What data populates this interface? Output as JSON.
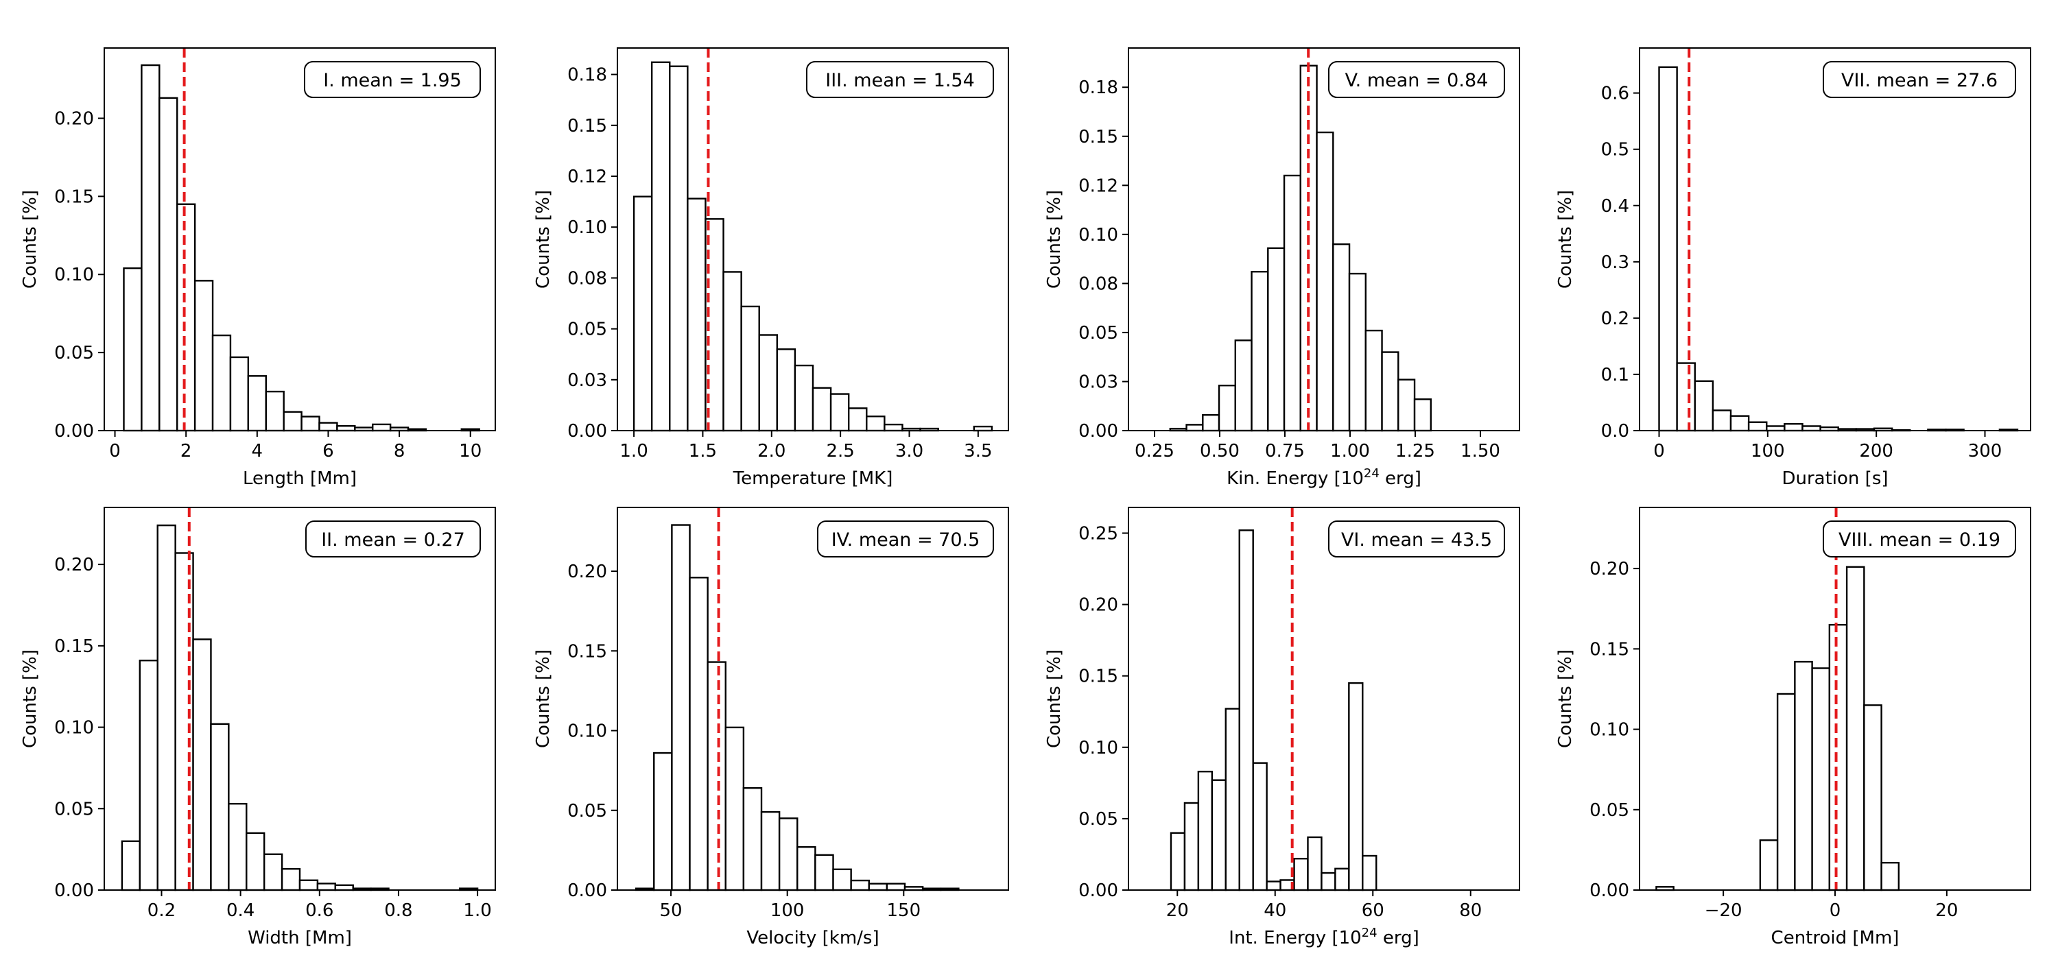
{
  "chart_data": [
    {
      "id": "I",
      "type": "bar",
      "xlabel": "Length [Mm]",
      "ylabel": "Counts [%]",
      "xlim": [
        -0.3,
        10.7
      ],
      "ylim": [
        0,
        0.245
      ],
      "xticks": [
        0,
        2,
        4,
        6,
        8,
        10
      ],
      "xtick_labels": [
        "0",
        "2",
        "4",
        "6",
        "8",
        "10"
      ],
      "yticks": [
        0,
        0.05,
        0.1,
        0.15,
        0.2
      ],
      "ytick_labels": [
        "0.00",
        "0.05",
        "0.10",
        "0.15",
        "0.20"
      ],
      "bin_start": 0.25,
      "bin_width": 0.5,
      "values": [
        0.104,
        0.234,
        0.213,
        0.145,
        0.096,
        0.061,
        0.047,
        0.035,
        0.025,
        0.012,
        0.009,
        0.005,
        0.003,
        0.002,
        0.004,
        0.002,
        0.001,
        0.0,
        0.0,
        0.001
      ],
      "mean": 1.95,
      "annotation": "I. mean = 1.95"
    },
    {
      "id": "III",
      "type": "bar",
      "xlabel": "Temperature [MK]",
      "ylabel": "Counts [%]",
      "xlim": [
        0.88,
        3.72
      ],
      "ylim": [
        0,
        0.188
      ],
      "xticks": [
        1.0,
        1.5,
        2.0,
        2.5,
        3.0,
        3.5
      ],
      "xtick_labels": [
        "1.0",
        "1.5",
        "2.0",
        "2.5",
        "3.0",
        "3.5"
      ],
      "yticks": [
        0,
        0.025,
        0.05,
        0.075,
        0.1,
        0.125,
        0.15,
        0.175
      ],
      "ytick_labels": [
        "0.00",
        "0.03",
        "0.05",
        "0.08",
        "0.10",
        "0.12",
        "0.15",
        "0.18"
      ],
      "bin_start": 1.0,
      "bin_width": 0.13,
      "values": [
        0.115,
        0.181,
        0.179,
        0.114,
        0.104,
        0.078,
        0.061,
        0.047,
        0.04,
        0.032,
        0.021,
        0.018,
        0.011,
        0.007,
        0.003,
        0.001,
        0.001,
        0.0,
        0.0,
        0.002
      ],
      "mean": 1.54,
      "annotation": "III. mean = 1.54"
    },
    {
      "id": "V",
      "type": "bar",
      "xlabel": "Kin. Energy [10",
      "xlabel_sup": "24",
      "xlabel_suffix": " erg]",
      "ylabel": "Counts [%]",
      "xlim": [
        0.15,
        1.65
      ],
      "ylim": [
        0,
        0.195
      ],
      "xticks": [
        0.25,
        0.5,
        0.75,
        1.0,
        1.25,
        1.5
      ],
      "xtick_labels": [
        "0.25",
        "0.50",
        "0.75",
        "1.00",
        "1.25",
        "1.50"
      ],
      "yticks": [
        0,
        0.025,
        0.05,
        0.075,
        0.1,
        0.125,
        0.15,
        0.175
      ],
      "ytick_labels": [
        "0.00",
        "0.03",
        "0.05",
        "0.08",
        "0.10",
        "0.12",
        "0.15",
        "0.18"
      ],
      "bin_start": 0.31,
      "bin_width": 0.0625,
      "values": [
        0.001,
        0.003,
        0.008,
        0.023,
        0.046,
        0.081,
        0.093,
        0.13,
        0.186,
        0.152,
        0.095,
        0.08,
        0.051,
        0.04,
        0.026,
        0.016
      ],
      "mean": 0.84,
      "annotation": "V. mean = 0.84"
    },
    {
      "id": "VII",
      "type": "bar",
      "xlabel": "Duration [s]",
      "ylabel": "Counts [%]",
      "xlim": [
        -18,
        342
      ],
      "ylim": [
        0,
        0.68
      ],
      "xticks": [
        0,
        100,
        200,
        300
      ],
      "xtick_labels": [
        "0",
        "100",
        "200",
        "300"
      ],
      "yticks": [
        0,
        0.1,
        0.2,
        0.3,
        0.4,
        0.5,
        0.6
      ],
      "ytick_labels": [
        "0.0",
        "0.1",
        "0.2",
        "0.3",
        "0.4",
        "0.5",
        "0.6"
      ],
      "bin_start": 0,
      "bin_width": 16.5,
      "values": [
        0.646,
        0.12,
        0.088,
        0.036,
        0.026,
        0.015,
        0.008,
        0.012,
        0.008,
        0.006,
        0.003,
        0.003,
        0.004,
        0.001,
        0.0,
        0.002,
        0.002,
        0.0,
        0.0,
        0.002
      ],
      "mean": 27.6,
      "annotation": "VII. mean = 27.6"
    },
    {
      "id": "II",
      "type": "bar",
      "xlabel": "Width [Mm]",
      "ylabel": "Counts [%]",
      "xlim": [
        0.055,
        1.045
      ],
      "ylim": [
        0,
        0.235
      ],
      "xticks": [
        0.2,
        0.4,
        0.6,
        0.8,
        1.0
      ],
      "xtick_labels": [
        "0.2",
        "0.4",
        "0.6",
        "0.8",
        "1.0"
      ],
      "yticks": [
        0,
        0.05,
        0.1,
        0.15,
        0.2
      ],
      "ytick_labels": [
        "0.00",
        "0.05",
        "0.10",
        "0.15",
        "0.20"
      ],
      "bin_start": 0.1,
      "bin_width": 0.045,
      "values": [
        0.03,
        0.141,
        0.224,
        0.207,
        0.154,
        0.102,
        0.053,
        0.035,
        0.022,
        0.013,
        0.006,
        0.004,
        0.003,
        0.001,
        0.001,
        0.0,
        0.0,
        0.0,
        0.0,
        0.001
      ],
      "mean": 0.27,
      "annotation": "II. mean = 0.27"
    },
    {
      "id": "IV",
      "type": "bar",
      "xlabel": "Velocity [km/s]",
      "ylabel": "Counts [%]",
      "xlim": [
        27,
        195
      ],
      "ylim": [
        0,
        0.24
      ],
      "xticks": [
        50,
        100,
        150
      ],
      "xtick_labels": [
        "50",
        "100",
        "150"
      ],
      "yticks": [
        0,
        0.05,
        0.1,
        0.15,
        0.2
      ],
      "ytick_labels": [
        "0.00",
        "0.05",
        "0.10",
        "0.15",
        "0.20"
      ],
      "bin_start": 35,
      "bin_width": 7.7,
      "values": [
        0.001,
        0.086,
        0.229,
        0.196,
        0.143,
        0.102,
        0.064,
        0.049,
        0.045,
        0.027,
        0.022,
        0.013,
        0.006,
        0.004,
        0.004,
        0.002,
        0.001,
        0.001,
        0.0,
        0.0
      ],
      "mean": 70.5,
      "annotation": "IV. mean = 70.5"
    },
    {
      "id": "VI",
      "type": "bar",
      "xlabel": "Int. Energy [10",
      "xlabel_sup": "24",
      "xlabel_suffix": " erg]",
      "ylabel": "Counts [%]",
      "xlim": [
        10,
        90
      ],
      "ylim": [
        0,
        0.268
      ],
      "xticks": [
        20,
        40,
        60,
        80
      ],
      "xtick_labels": [
        "20",
        "40",
        "60",
        "80"
      ],
      "yticks": [
        0,
        0.05,
        0.1,
        0.15,
        0.2,
        0.25
      ],
      "ytick_labels": [
        "0.00",
        "0.05",
        "0.10",
        "0.15",
        "0.20",
        "0.25"
      ],
      "bin_start": 18.7,
      "bin_width": 2.8,
      "values": [
        0.04,
        0.061,
        0.083,
        0.077,
        0.127,
        0.252,
        0.089,
        0.006,
        0.007,
        0.022,
        0.037,
        0.012,
        0.015,
        0.145,
        0.024
      ],
      "mean": 43.5,
      "annotation": "VI. mean = 43.5"
    },
    {
      "id": "VIII",
      "type": "bar",
      "xlabel": "Centroid [Mm]",
      "ylabel": "Counts [%]",
      "xlim": [
        -35,
        35
      ],
      "ylim": [
        0,
        0.238
      ],
      "xticks": [
        -20,
        0,
        20
      ],
      "xtick_labels": [
        "−20",
        "0",
        "20"
      ],
      "yticks": [
        0,
        0.05,
        0.1,
        0.15,
        0.2
      ],
      "ytick_labels": [
        "0.00",
        "0.05",
        "0.10",
        "0.15",
        "0.20"
      ],
      "bin_start": -32,
      "bin_width": 3.1,
      "values": [
        0.002,
        0.0,
        0.0,
        0.0,
        0.0,
        0.0,
        0.031,
        0.122,
        0.142,
        0.138,
        0.165,
        0.201,
        0.115,
        0.017
      ],
      "mean": 0.19,
      "annotation": "VIII. mean = 0.19"
    }
  ]
}
